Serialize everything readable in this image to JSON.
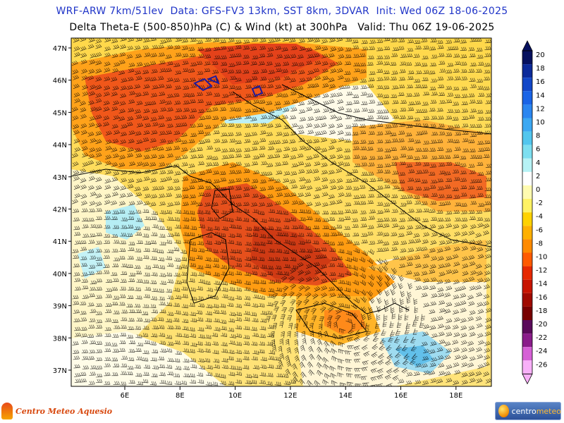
{
  "header": {
    "line1": "WRF-ARW 7km/51lev  Data: GFS-FV3 13km, SST 8km, 3DVAR  Init: Wed 06Z 18-06-2025",
    "line2": "Delta Theta-E (500-850)hPa (C) & Wind (kt) at 300hPa   Valid: Thu 06Z 19-06-2025"
  },
  "map": {
    "lat_labels": [
      "47N",
      "46N",
      "45N",
      "44N",
      "43N",
      "42N",
      "41N",
      "40N",
      "39N",
      "38N",
      "37N"
    ],
    "lon_labels": [
      "6E",
      "8E",
      "10E",
      "12E",
      "14E",
      "16E",
      "18E"
    ]
  },
  "colorbar": {
    "labels": [
      "20",
      "18",
      "16",
      "14",
      "12",
      "10",
      "8",
      "6",
      "4",
      "2",
      "0",
      "-2",
      "-4",
      "-6",
      "-8",
      "-10",
      "-12",
      "-14",
      "-16",
      "-18",
      "-20",
      "-22",
      "-24",
      "-26"
    ],
    "colors": [
      "#06115e",
      "#0c2a9a",
      "#1247c8",
      "#1a64e6",
      "#2b86f0",
      "#3ca8f2",
      "#52c6ee",
      "#7ddff0",
      "#b6f2f5",
      "#ffffff",
      "#fffbb0",
      "#fff264",
      "#ffd200",
      "#ffb000",
      "#ff8a00",
      "#ff5a00",
      "#e62800",
      "#c81400",
      "#a00a00",
      "#780000",
      "#5a0a5a",
      "#8a1c8a",
      "#d660d6",
      "#f8b0f8"
    ]
  },
  "logos": {
    "left_text": "Centro Meteo Aquesio",
    "right_text_a": "centro",
    "right_text_b": "meteo"
  }
}
